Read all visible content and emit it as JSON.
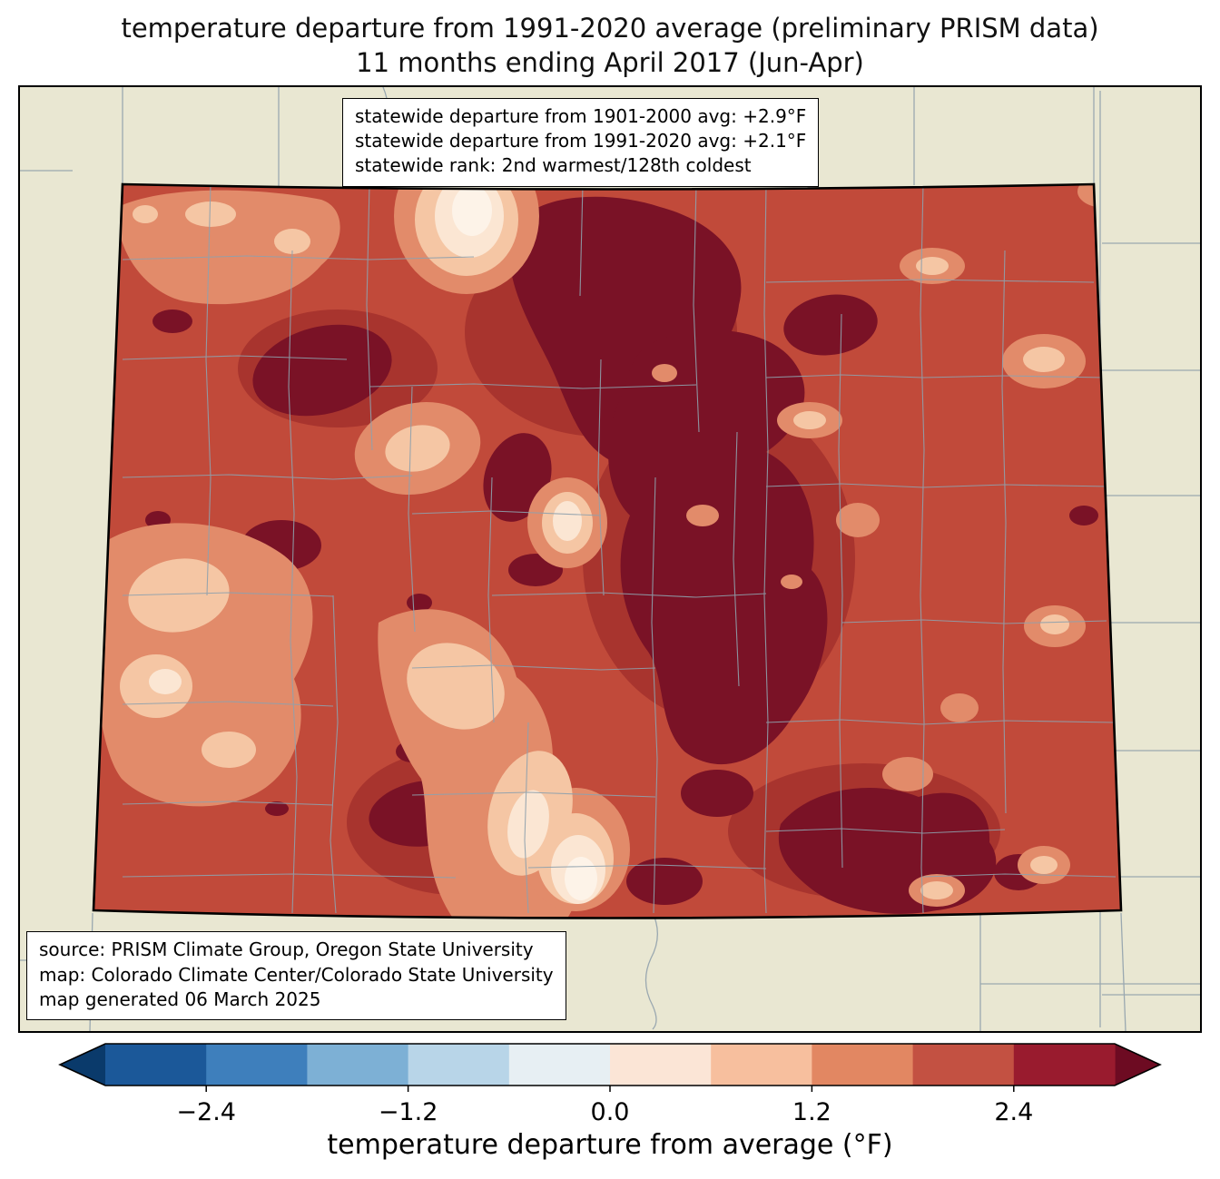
{
  "title": {
    "line1": "temperature departure from 1991-2020 average (preliminary PRISM data)",
    "line2": "11 months ending April 2017 (Jun-Apr)"
  },
  "stats_box": {
    "line1": "statewide departure from 1901-2000 avg: +2.9°F",
    "line2": "statewide departure from 1991-2020 avg: +2.1°F",
    "line3": "statewide rank: 2nd warmest/128th coldest"
  },
  "source_box": {
    "line1": "source: PRISM Climate Group, Oregon State University",
    "line2": "map: Colorado Climate Center/Colorado State University",
    "line3": "map generated 06 March 2025"
  },
  "map": {
    "region": "Colorado",
    "background": "#e9e7d2",
    "palette": {
      "base_red": "#c14a3a",
      "mid_red": "#a8342e",
      "dark_red": "#7a1226",
      "salmon": "#e28b6a",
      "peach": "#f5c6a4",
      "cream": "#fbe6d3",
      "white_core": "#fdf3e8",
      "county_line": "#8fa1ad",
      "neighbor_line": "#9aa8b0"
    }
  },
  "chart_data": {
    "type": "heatmap",
    "title": "temperature departure from 1991-2020 average (preliminary PRISM data), 11 months ending April 2017 (Jun-Apr)",
    "region": "Colorado",
    "statewide_departure_1901_2000_F": 2.9,
    "statewide_departure_1991_2020_F": 2.1,
    "statewide_rank": "2nd warmest/128th coldest",
    "value_range_F": [
      -3.0,
      3.0
    ],
    "legend_position": "bottom"
  },
  "colorbar": {
    "label": "temperature departure from average (°F)",
    "min": -3.0,
    "max": 3.0,
    "colors": [
      "#1b5899",
      "#3e7fbc",
      "#7db0d5",
      "#b8d5e8",
      "#e7eff3",
      "#fbe5d6",
      "#f7bf9e",
      "#e28762",
      "#c35142",
      "#991b2e"
    ],
    "arrow_left": "#0a3a6b",
    "arrow_right": "#6d0b22",
    "ticks": [
      {
        "value": -2.4,
        "label": "−2.4"
      },
      {
        "value": -1.2,
        "label": "−1.2"
      },
      {
        "value": 0.0,
        "label": "0.0"
      },
      {
        "value": 1.2,
        "label": "1.2"
      },
      {
        "value": 2.4,
        "label": "2.4"
      }
    ]
  }
}
